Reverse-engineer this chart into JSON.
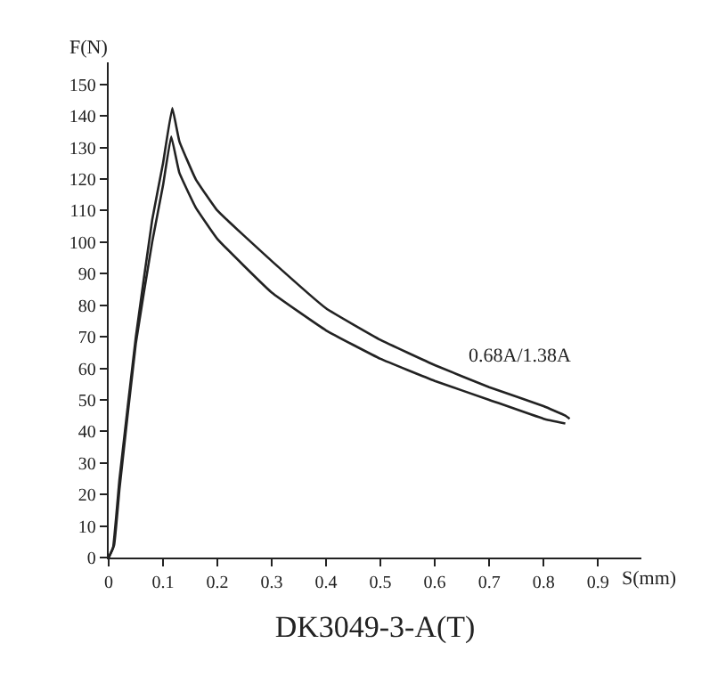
{
  "chart_data": {
    "type": "line",
    "title": "DK3049-3-A(T)",
    "xlabel": "S(mm)",
    "ylabel": "F(N)",
    "annotations": [
      "0.68A/1.38A"
    ],
    "xlim": [
      0,
      0.98
    ],
    "ylim": [
      0,
      157
    ],
    "xticks": [
      0,
      0.1,
      0.2,
      0.3,
      0.4,
      0.5,
      0.6,
      0.7,
      0.8,
      0.9
    ],
    "yticks": [
      0,
      10,
      20,
      30,
      40,
      50,
      60,
      70,
      80,
      90,
      100,
      110,
      120,
      130,
      140,
      150
    ],
    "grid": false,
    "marker": "none",
    "line_style": "solid",
    "series": [
      {
        "color": "#222222",
        "x": [
          0,
          0.008,
          0.02,
          0.05,
          0.08,
          0.1,
          0.117,
          0.13,
          0.16,
          0.2,
          0.3,
          0.4,
          0.5,
          0.6,
          0.7,
          0.8,
          0.84,
          0.848
        ],
        "values": [
          0,
          3,
          25,
          70,
          107,
          125,
          142.5,
          132,
          120,
          110,
          94,
          79,
          69,
          61,
          54,
          48,
          45,
          44
        ]
      },
      {
        "color": "#222222",
        "x": [
          0,
          0.01,
          0.02,
          0.05,
          0.08,
          0.1,
          0.115,
          0.13,
          0.16,
          0.2,
          0.3,
          0.4,
          0.5,
          0.6,
          0.7,
          0.8,
          0.84
        ],
        "values": [
          0,
          4,
          22,
          68,
          100,
          118,
          133.5,
          122,
          111,
          101,
          84,
          72,
          63,
          56,
          50,
          44,
          42.5
        ]
      }
    ]
  }
}
